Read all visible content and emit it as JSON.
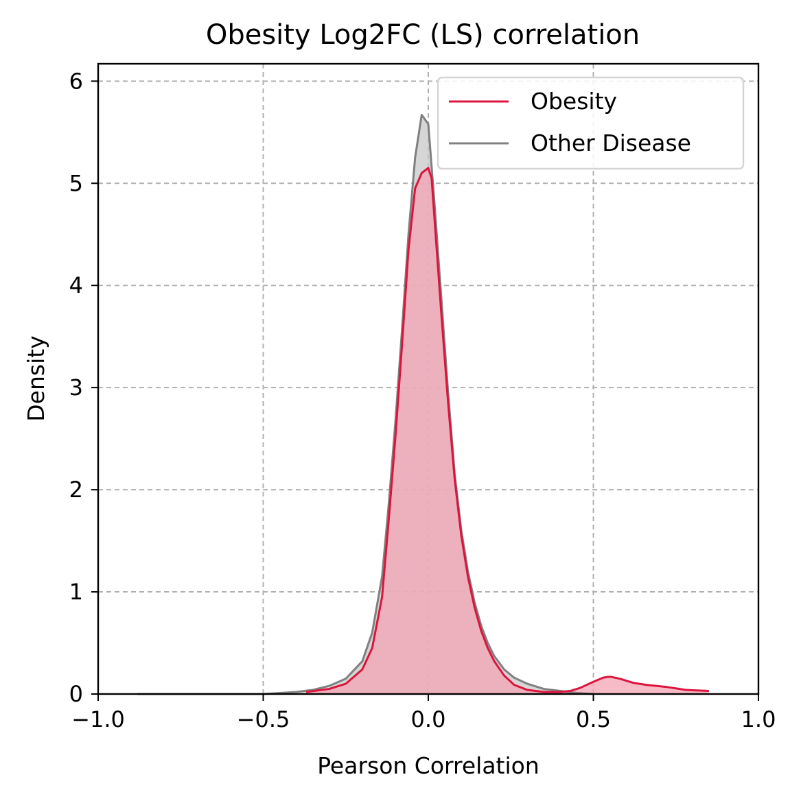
{
  "chart_data": {
    "type": "area",
    "title": "Obesity Log2FC (LS) correlation",
    "xlabel": "Pearson Correlation",
    "ylabel": "Density",
    "xlim": [
      -1.0,
      1.0
    ],
    "ylim": [
      0,
      6.17
    ],
    "x_ticks": [
      -1.0,
      -0.5,
      0.0,
      0.5,
      1.0
    ],
    "x_tick_labels": [
      "−1.0",
      "−0.5",
      "0.0",
      "0.5",
      "1.0"
    ],
    "y_ticks": [
      0,
      1,
      2,
      3,
      4,
      5,
      6
    ],
    "y_tick_labels": [
      "0",
      "1",
      "2",
      "3",
      "4",
      "5",
      "6"
    ],
    "grid": true,
    "legend_position": "top-right",
    "series": [
      {
        "name": "Other Disease",
        "color": "#808080",
        "fill": "#c8c8c8",
        "x": [
          -0.88,
          -0.5,
          -0.4,
          -0.35,
          -0.3,
          -0.25,
          -0.2,
          -0.17,
          -0.14,
          -0.12,
          -0.1,
          -0.08,
          -0.06,
          -0.04,
          -0.02,
          0.0,
          0.02,
          0.04,
          0.06,
          0.08,
          0.1,
          0.12,
          0.14,
          0.16,
          0.18,
          0.2,
          0.23,
          0.26,
          0.3,
          0.35,
          0.4,
          0.45,
          0.5
        ],
        "y": [
          0.0,
          0.0,
          0.02,
          0.04,
          0.08,
          0.15,
          0.32,
          0.6,
          1.15,
          1.85,
          2.65,
          3.55,
          4.5,
          5.25,
          5.67,
          5.58,
          4.75,
          3.85,
          2.95,
          2.15,
          1.6,
          1.2,
          0.9,
          0.67,
          0.5,
          0.37,
          0.24,
          0.16,
          0.1,
          0.05,
          0.03,
          0.01,
          0.0
        ]
      },
      {
        "name": "Obesity",
        "color": "#dc143c",
        "fill": "#f4a3b4",
        "x": [
          -0.37,
          -0.3,
          -0.25,
          -0.2,
          -0.17,
          -0.14,
          -0.12,
          -0.1,
          -0.08,
          -0.06,
          -0.04,
          -0.02,
          0.0,
          0.01,
          0.02,
          0.04,
          0.06,
          0.08,
          0.1,
          0.12,
          0.14,
          0.16,
          0.18,
          0.2,
          0.23,
          0.26,
          0.3,
          0.35,
          0.4,
          0.43,
          0.46,
          0.5,
          0.53,
          0.55,
          0.58,
          0.62,
          0.66,
          0.72,
          0.78,
          0.85
        ],
        "y": [
          0.02,
          0.05,
          0.1,
          0.24,
          0.45,
          0.95,
          1.7,
          2.5,
          3.4,
          4.35,
          4.95,
          5.1,
          5.15,
          5.05,
          4.6,
          3.7,
          2.85,
          2.1,
          1.55,
          1.15,
          0.85,
          0.62,
          0.45,
          0.32,
          0.18,
          0.09,
          0.04,
          0.02,
          0.02,
          0.03,
          0.06,
          0.12,
          0.16,
          0.17,
          0.15,
          0.11,
          0.09,
          0.07,
          0.04,
          0.03
        ]
      }
    ]
  }
}
